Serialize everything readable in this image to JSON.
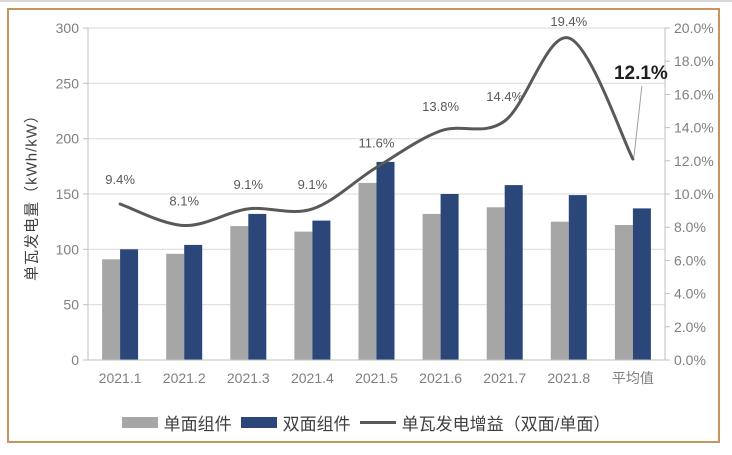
{
  "page": {
    "background": "#ffffff",
    "frame_border_color": "#c9935f",
    "top_strip_color": "#d8d8d8"
  },
  "chart_data": {
    "type": "combo-bar-line",
    "title": "",
    "categories": [
      "2021.1",
      "2021.2",
      "2021.3",
      "2021.4",
      "2021.5",
      "2021.6",
      "2021.7",
      "2021.8",
      "平均值"
    ],
    "series": [
      {
        "name": "单面组件",
        "type": "bar",
        "axis": "left",
        "color": "#a6a6a6",
        "values": [
          91,
          96,
          121,
          116,
          160,
          132,
          138,
          125,
          122
        ]
      },
      {
        "name": "双面组件",
        "type": "bar",
        "axis": "left",
        "color": "#2b4678",
        "values": [
          100,
          104,
          132,
          126,
          179,
          150,
          158,
          149,
          137
        ]
      },
      {
        "name": "单瓦发电增益（双面/单面）",
        "type": "line",
        "axis": "right",
        "color": "#595959",
        "values": [
          9.4,
          8.1,
          9.1,
          9.1,
          11.6,
          13.8,
          14.4,
          19.4,
          12.1
        ],
        "labels": [
          "9.4%",
          "8.1%",
          "9.1%",
          "9.1%",
          "11.6%",
          "13.8%",
          "14.4%",
          "19.4%",
          "12.1%"
        ],
        "last_label_emphasized": true
      }
    ],
    "left_axis": {
      "title": "单瓦发电量（kWh/kW）",
      "min": 0,
      "max": 300,
      "step": 50,
      "tick_labels": [
        "0",
        "50",
        "100",
        "150",
        "200",
        "250",
        "300"
      ]
    },
    "right_axis": {
      "min": 0,
      "max": 20,
      "step": 2,
      "tick_labels": [
        "0.0%",
        "2.0%",
        "4.0%",
        "6.0%",
        "8.0%",
        "10.0%",
        "12.0%",
        "14.0%",
        "16.0%",
        "18.0%",
        "20.0%"
      ]
    },
    "legend": {
      "position": "bottom",
      "entries": [
        {
          "label": "单面组件",
          "swatch": "bar",
          "color": "#a6a6a6"
        },
        {
          "label": "双面组件",
          "swatch": "bar",
          "color": "#2b4678"
        },
        {
          "label": "单瓦发电增益（双面/单面）",
          "swatch": "line",
          "color": "#595959"
        }
      ]
    },
    "grid": "horizontal",
    "colors": {
      "gridline": "#d9d9d9",
      "axis_line": "#bfbfbf",
      "tick_text": "#7f7f7f",
      "data_label": "#595959",
      "emphasis_label": "#1f1f1f",
      "leader_line": "#9f9f9f"
    }
  }
}
